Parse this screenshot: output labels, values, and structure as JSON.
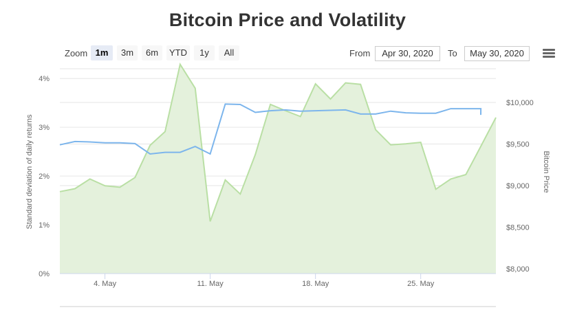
{
  "title": "Bitcoin Price and Volatility",
  "zoom": {
    "label": "Zoom",
    "buttons": [
      "1m",
      "3m",
      "6m",
      "YTD",
      "1y",
      "All"
    ],
    "active": "1m"
  },
  "range": {
    "from_label": "From",
    "from_value": "Apr 30, 2020",
    "to_label": "To",
    "to_value": "May 30, 2020"
  },
  "menu_icon": "hamburger-menu-icon",
  "chart_data": {
    "type": "line",
    "title": "Bitcoin Price and Volatility",
    "x_dates": [
      "2020-05-01",
      "2020-05-02",
      "2020-05-03",
      "2020-05-04",
      "2020-05-05",
      "2020-05-06",
      "2020-05-07",
      "2020-05-08",
      "2020-05-09",
      "2020-05-10",
      "2020-05-11",
      "2020-05-12",
      "2020-05-13",
      "2020-05-14",
      "2020-05-15",
      "2020-05-16",
      "2020-05-17",
      "2020-05-18",
      "2020-05-19",
      "2020-05-20",
      "2020-05-21",
      "2020-05-22",
      "2020-05-23",
      "2020-05-24",
      "2020-05-25",
      "2020-05-26",
      "2020-05-27",
      "2020-05-28",
      "2020-05-29",
      "2020-05-30"
    ],
    "x_ticks": [
      "4. May",
      "11. May",
      "18. May",
      "25. May"
    ],
    "left_axis": {
      "title": "Standard deviation of daily returns",
      "ticks": [
        "0%",
        "1%",
        "2%",
        "3%",
        "4%"
      ],
      "range": [
        0,
        4.2
      ]
    },
    "right_axis": {
      "title": "Bitcoin Price",
      "ticks": [
        "$8,000",
        "$8,500",
        "$9,000",
        "$9,500",
        "$10,000"
      ],
      "range": [
        8000,
        10000
      ]
    },
    "series": [
      {
        "axis": "left",
        "kind": "area",
        "color": "#b9dfa4",
        "fill": "#e4f1dc",
        "values": [
          1.68,
          1.74,
          1.94,
          1.8,
          1.77,
          1.97,
          2.63,
          2.91,
          4.29,
          3.8,
          1.07,
          1.92,
          1.63,
          2.44,
          3.47,
          3.34,
          3.22,
          3.89,
          3.58,
          3.91,
          3.88,
          2.95,
          2.64,
          2.66,
          2.69,
          1.73,
          1.94,
          2.03,
          2.61,
          3.2
        ]
      },
      {
        "axis": "right",
        "kind": "line",
        "color": "#7cb5ec",
        "values": [
          9490,
          9530,
          9525,
          9515,
          9515,
          9505,
          9380,
          9400,
          9400,
          9470,
          9380,
          9980,
          9975,
          9880,
          9900,
          9910,
          9895,
          9900,
          9905,
          9910,
          9860,
          9860,
          9895,
          9875,
          9870,
          9870,
          9925,
          9925,
          9925,
          9850
        ]
      }
    ],
    "grid": true
  }
}
